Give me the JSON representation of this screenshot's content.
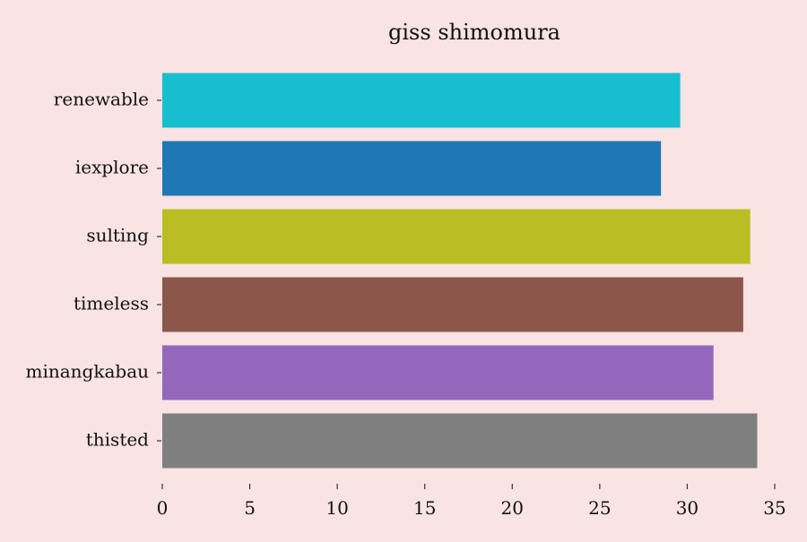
{
  "chart_data": {
    "type": "bar",
    "orientation": "horizontal",
    "title": "giss shimomura",
    "xlabel": "",
    "ylabel": "",
    "categories": [
      "renewable",
      "iexplore",
      "sulting",
      "timeless",
      "minangkabau",
      "thisted"
    ],
    "values": [
      29.6,
      28.5,
      33.6,
      33.2,
      31.5,
      34.0
    ],
    "colors": [
      "#17becf",
      "#1f77b4",
      "#bcbd22",
      "#8c564b",
      "#9467bd",
      "#7f7f7f"
    ],
    "xlim": [
      0,
      35
    ],
    "xticks": [
      0,
      5,
      10,
      15,
      20,
      25,
      30,
      35
    ],
    "grid": false,
    "legend": "none",
    "background": "#f9e3e3"
  }
}
